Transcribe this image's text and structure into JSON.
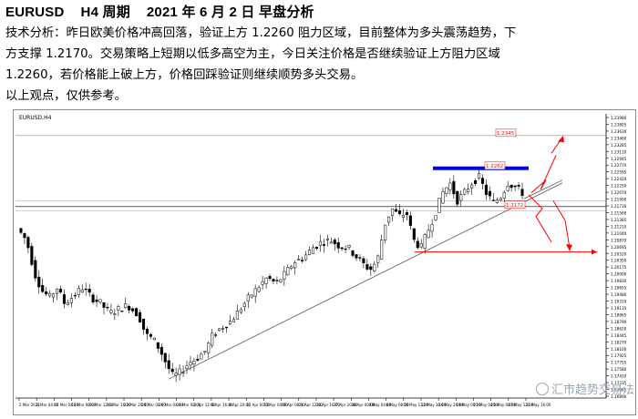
{
  "header": {
    "symbol": "EURUSD",
    "period": "H4 周期",
    "date_title": "2021 年 6 月 2 日  早盘分析"
  },
  "analysis": {
    "line1": "技术分析：昨日欧美价格冲高回落，验证上方 1.2260 阻力区域，目前整体为多头震荡趋势，下",
    "line2": "方支撑 1.2170。交易策略上短期以低多高空为主，今日关注价格是否继续验证上方阻力区域",
    "line3": "1.2260，若价格能上破上方，价格回踩验证则继续顺势多头交易。",
    "line4": "以上观点，仅供参考。"
  },
  "chart_window": {
    "label": "EURUSD,H4"
  },
  "chart_data": {
    "type": "candlestick",
    "symbol": "EURUSD",
    "timeframe": "H4",
    "ylim": [
      1.168,
      1.24
    ],
    "y_ticks": [
      "1.23980",
      "1.23805",
      "1.23630",
      "1.23460",
      "1.23285",
      "1.23110",
      "1.22945",
      "1.22770",
      "1.22595",
      "1.22420",
      "1.22250",
      "1.22070",
      "1.21900",
      "1.21730",
      "1.21560",
      "1.21385",
      "1.21210",
      "1.21040",
      "1.20870",
      "1.20695",
      "1.20520",
      "1.20350",
      "1.20175",
      "1.20000",
      "1.19830",
      "1.19655",
      "1.19480",
      "1.19310",
      "1.19135",
      "1.18965",
      "1.18790",
      "1.18620",
      "1.18445",
      "1.18270",
      "1.18100",
      "1.17925",
      "1.17755",
      "1.17580",
      "1.17410",
      "1.17235",
      "1.17065",
      "1.16890"
    ],
    "x_ticks": [
      "2 Mar 2021",
      "6 Mar 04:00",
      "10 Mar 04:00",
      "12 Mar 08:00",
      "16 Mar 12:00",
      "18 Mar 16:00",
      "22 Mar 20:00",
      "24 Mar 00:00",
      "29 Mar 04:00",
      "31 Mar 08:00",
      "2 Apr 12:00",
      "6 Apr 16:00",
      "8 Apr 20:00",
      "12 Apr 00:00",
      "15 Apr 04:00",
      "19 Apr 08:00",
      "21 Apr 12:00",
      "23 Apr 16:00",
      "27 Apr 20:00",
      "30 Apr 00:00",
      "4 May 04:00",
      "6 May 08:00",
      "10 May 12:00",
      "12 May 16:00",
      "14 May 20:00",
      "19 May 00:00",
      "21 May 04:00",
      "25 May 08:00",
      "27 May 12:00",
      "31 May 16:00"
    ],
    "annotations": [
      {
        "text": "1.2345",
        "value": 1.2345
      },
      {
        "text": "1.2262",
        "value": 1.2262
      },
      {
        "text": "1.2172",
        "value": 1.2172
      }
    ],
    "resistance_level": 1.2262,
    "support_level": 1.2172,
    "target_level": 1.205,
    "colors": {
      "bull": "#000000",
      "bear": "#000000",
      "resistance": "#0000ff",
      "annotation": "#ff0000",
      "trend": "#555555"
    }
  },
  "watermark": {
    "text": "汇市趋势交易法",
    "icon": "brand-icon"
  }
}
